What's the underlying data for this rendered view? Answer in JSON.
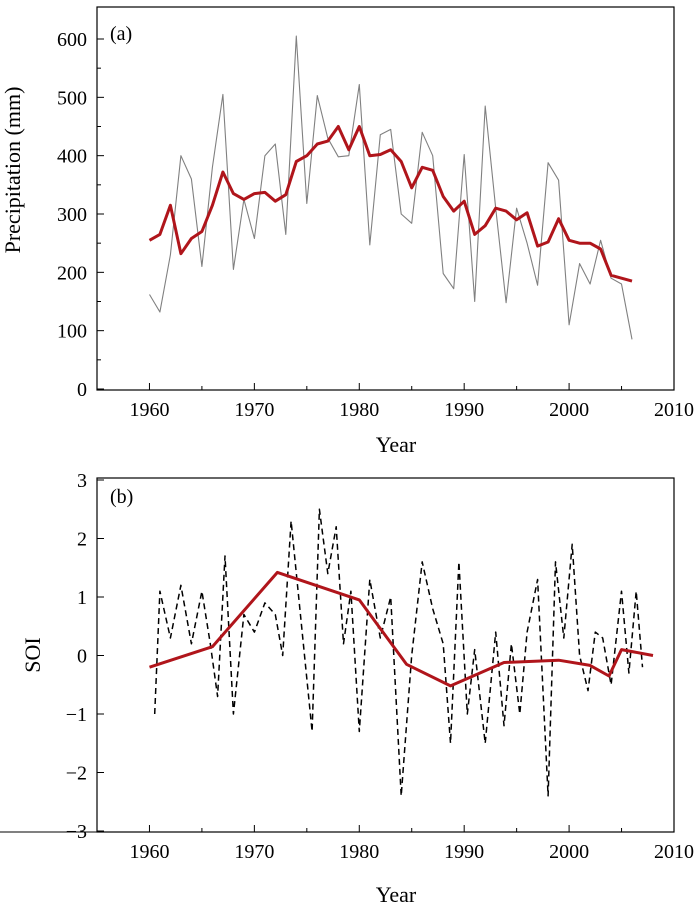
{
  "chart_data": [
    {
      "type": "line",
      "panel_label": "(a)",
      "xlabel": "Year",
      "ylabel": "Precipitation (mm)",
      "xlim": [
        1955,
        2010
      ],
      "ylim": [
        0,
        650
      ],
      "xticks": [
        1960,
        1970,
        1980,
        1990,
        2000,
        2010
      ],
      "yticks": [
        0,
        100,
        200,
        300,
        400,
        500,
        600
      ],
      "grid": false,
      "series": [
        {
          "color": "#808080",
          "style": "solid",
          "x": [
            1960,
            1961,
            1962,
            1963,
            1964,
            1965,
            1966,
            1967,
            1968,
            1969,
            1970,
            1971,
            1972,
            1973,
            1974,
            1975,
            1976,
            1977,
            1978,
            1979,
            1980,
            1981,
            1982,
            1983,
            1984,
            1985,
            1986,
            1987,
            1988,
            1989,
            1990,
            1991,
            1992,
            1993,
            1994,
            1995,
            1996,
            1997,
            1998,
            1999,
            2000,
            2001,
            2002,
            2003,
            2004,
            2005,
            2006
          ],
          "values": [
            162,
            132,
            230,
            400,
            360,
            210,
            380,
            505,
            205,
            325,
            258,
            400,
            420,
            265,
            605,
            318,
            503,
            430,
            398,
            400,
            522,
            247,
            436,
            445,
            300,
            284,
            440,
            400,
            198,
            172,
            402,
            150,
            485,
            310,
            148,
            310,
            250,
            178,
            388,
            358,
            110,
            215,
            180,
            255,
            190,
            180,
            85
          ]
        },
        {
          "color": "#b0151b",
          "style": "solid",
          "x": [
            1960,
            1961,
            1962,
            1963,
            1964,
            1965,
            1966,
            1967,
            1968,
            1969,
            1970,
            1971,
            1972,
            1973,
            1974,
            1975,
            1976,
            1977,
            1978,
            1979,
            1980,
            1981,
            1982,
            1983,
            1984,
            1985,
            1986,
            1987,
            1988,
            1989,
            1990,
            1991,
            1992,
            1993,
            1994,
            1995,
            1996,
            1997,
            1998,
            1999,
            2000,
            2001,
            2002,
            2003,
            2004,
            2005,
            2006
          ],
          "values": [
            255,
            265,
            315,
            232,
            258,
            270,
            315,
            372,
            335,
            325,
            335,
            337,
            322,
            333,
            390,
            400,
            420,
            425,
            450,
            410,
            450,
            400,
            402,
            410,
            390,
            345,
            380,
            375,
            330,
            305,
            322,
            265,
            280,
            310,
            305,
            290,
            302,
            245,
            252,
            292,
            255,
            250,
            250,
            240,
            195,
            190,
            185
          ]
        }
      ]
    },
    {
      "type": "line",
      "panel_label": "(b)",
      "xlabel": "Year",
      "ylabel": "SOI",
      "xlim": [
        1955,
        2010
      ],
      "ylim": [
        -3,
        3
      ],
      "xticks": [
        1960,
        1970,
        1980,
        1990,
        2000,
        2010
      ],
      "yticks": [
        -3,
        -2,
        -1,
        0,
        1,
        2,
        3
      ],
      "grid": false,
      "series": [
        {
          "color": "#000000",
          "style": "dashed",
          "x": [
            1960.5,
            1961,
            1962,
            1963,
            1964,
            1965,
            1965.8,
            1966.5,
            1967.2,
            1968,
            1969,
            1970,
            1971,
            1972,
            1972.7,
            1973.5,
            1974.5,
            1975.5,
            1976.2,
            1977,
            1977.8,
            1978.5,
            1979.2,
            1980,
            1981,
            1982,
            1983,
            1984,
            1985,
            1986,
            1987,
            1988,
            1988.7,
            1989.5,
            1990.3,
            1991,
            1992,
            1993,
            1993.8,
            1994.5,
            1995.3,
            1996,
            1997,
            1998,
            1998.7,
            1999.5,
            2000.3,
            2001,
            2001.8,
            2002.5,
            2003.2,
            2004,
            2005,
            2005.7,
            2006.4,
            2007
          ],
          "values": [
            -1.0,
            1.1,
            0.3,
            1.2,
            0.2,
            1.1,
            0.2,
            -0.7,
            1.7,
            -1.0,
            0.7,
            0.4,
            0.9,
            0.7,
            0.0,
            2.3,
            0.5,
            -1.3,
            2.5,
            1.4,
            2.2,
            0.2,
            1.1,
            -1.3,
            1.3,
            0.3,
            1.0,
            -2.4,
            0.0,
            1.6,
            0.8,
            0.2,
            -1.5,
            1.6,
            -1.0,
            0.1,
            -1.5,
            0.4,
            -1.2,
            0.2,
            -1.0,
            0.4,
            1.3,
            -2.4,
            1.6,
            0.3,
            1.9,
            0.0,
            -0.6,
            0.4,
            0.3,
            -0.5,
            1.1,
            -0.3,
            1.1,
            -0.2
          ]
        },
        {
          "color": "#b0151b",
          "style": "solid",
          "x": [
            1960,
            1966,
            1972.2,
            1980,
            1984.5,
            1988.7,
            1993.8,
            1999,
            2002,
            2003.8,
            2005,
            2008
          ],
          "values": [
            -0.2,
            0.15,
            1.42,
            0.95,
            -0.15,
            -0.52,
            -0.12,
            -0.08,
            -0.17,
            -0.35,
            0.1,
            0.0
          ]
        }
      ]
    }
  ]
}
